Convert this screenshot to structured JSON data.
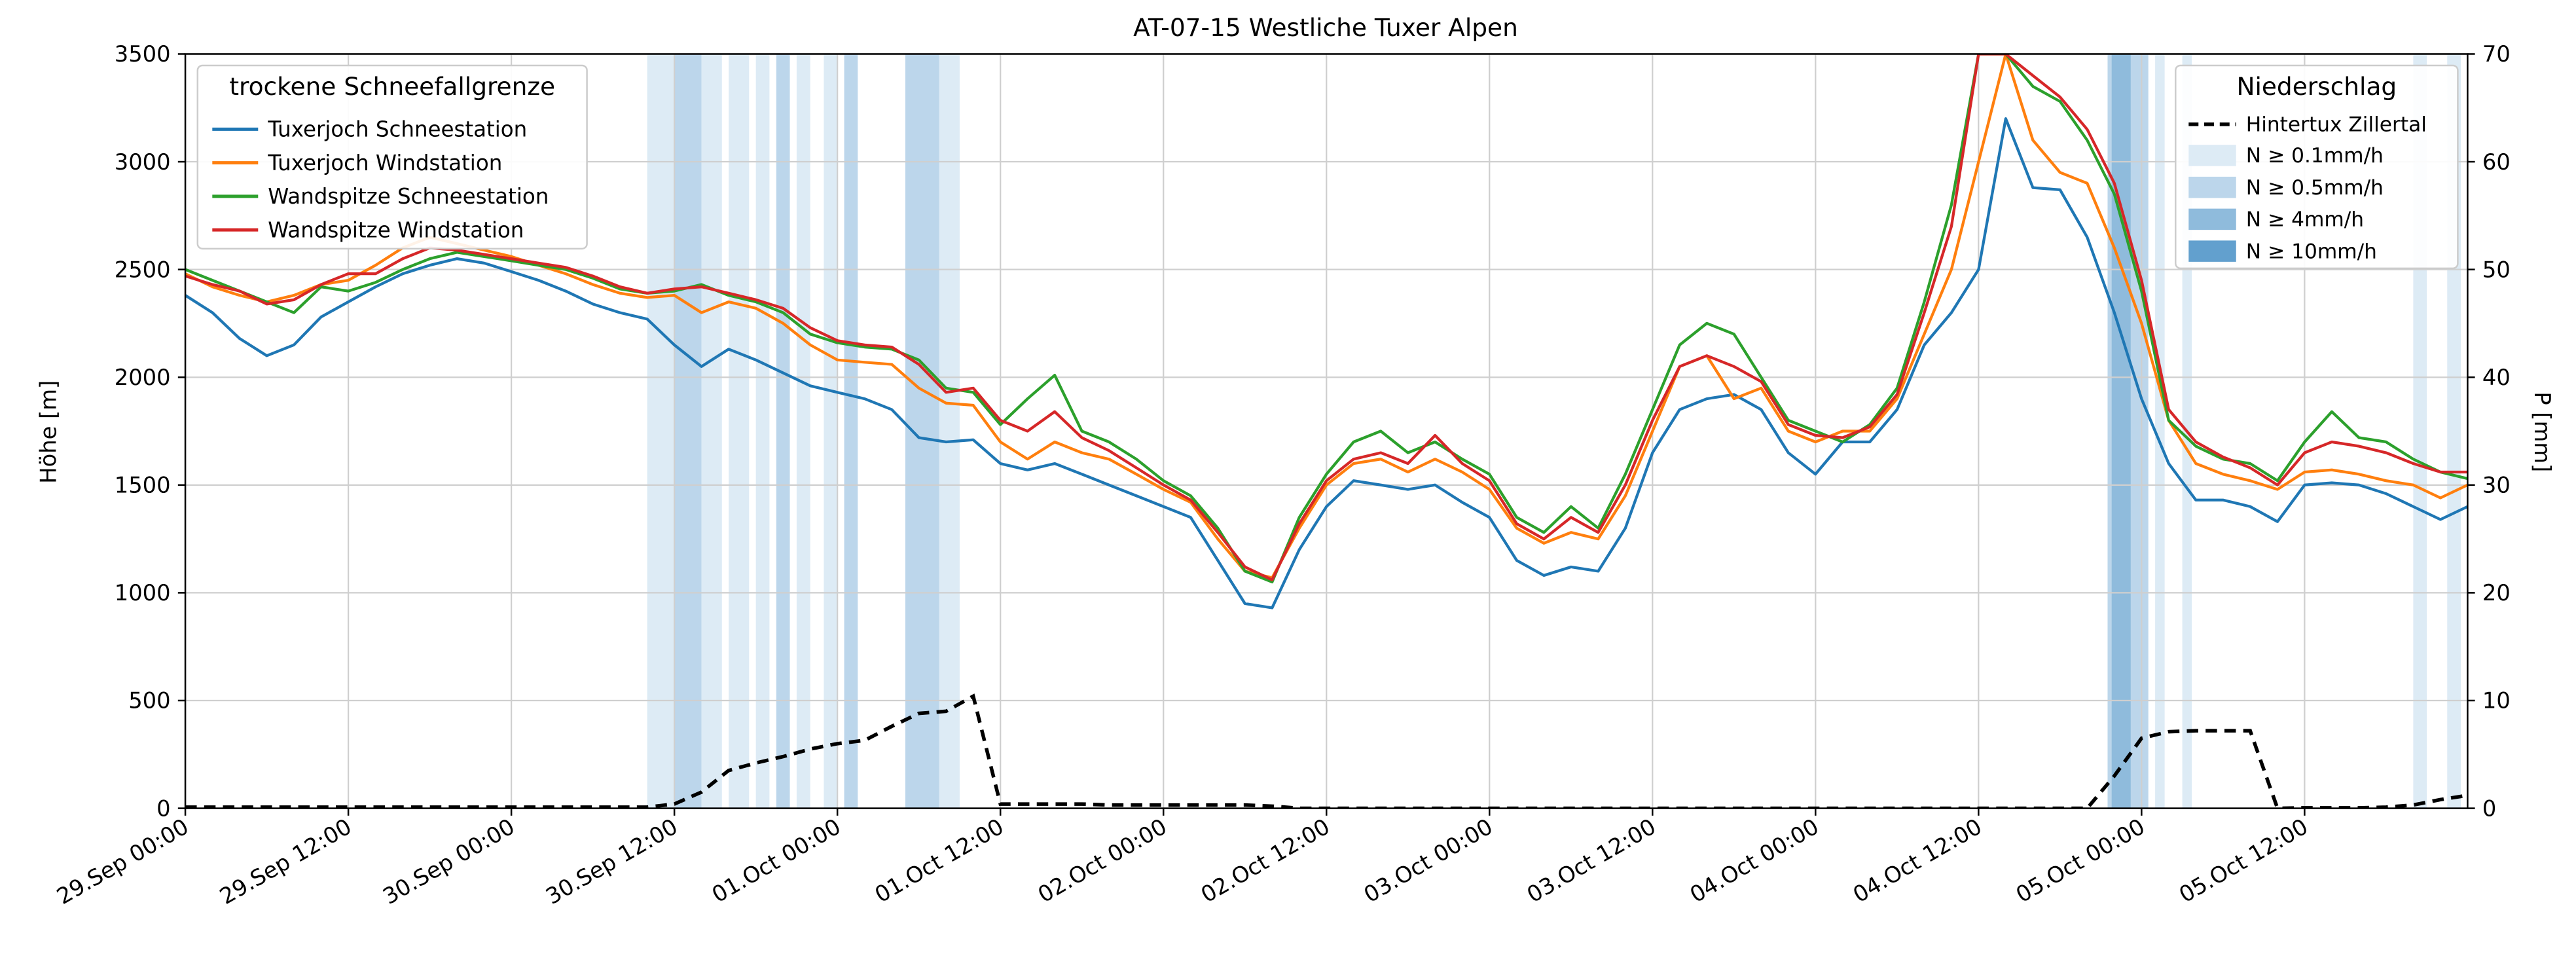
{
  "title": "AT-07-15 Westliche Tuxer Alpen",
  "chart_data": {
    "type": "line",
    "title": "AT-07-15 Westliche Tuxer Alpen",
    "grid": true,
    "xlim": [
      0,
      168
    ],
    "x_ticks": [
      {
        "h": 0,
        "label": "29.Sep 00:00"
      },
      {
        "h": 12,
        "label": "29.Sep 12:00"
      },
      {
        "h": 24,
        "label": "30.Sep 00:00"
      },
      {
        "h": 36,
        "label": "30.Sep 12:00"
      },
      {
        "h": 48,
        "label": "01.Oct 00:00"
      },
      {
        "h": 60,
        "label": "01.Oct 12:00"
      },
      {
        "h": 72,
        "label": "02.Oct 00:00"
      },
      {
        "h": 84,
        "label": "02.Oct 12:00"
      },
      {
        "h": 96,
        "label": "03.Oct 00:00"
      },
      {
        "h": 108,
        "label": "03.Oct 12:00"
      },
      {
        "h": 120,
        "label": "04.Oct 00:00"
      },
      {
        "h": 132,
        "label": "04.Oct 12:00"
      },
      {
        "h": 144,
        "label": "05.Oct 00:00"
      },
      {
        "h": 156,
        "label": "05.Oct 12:00"
      }
    ],
    "ylabel_left": "Höhe [m]",
    "ylim_left": [
      0,
      3500
    ],
    "yticks_left": [
      0,
      500,
      1000,
      1500,
      2000,
      2500,
      3000,
      3500
    ],
    "ylabel_right": "P [mm]",
    "ylim_right": [
      0,
      70
    ],
    "yticks_right": [
      0,
      10,
      20,
      30,
      40,
      50,
      60,
      70
    ],
    "legend_left": {
      "title": "trockene Schneefallgrenze"
    },
    "legend_right": {
      "title": "Niederschlag",
      "line_label": "Hintertux Zillertal",
      "band_entries": [
        {
          "label": "N ≥ 0.1mm/h",
          "level": "0.1"
        },
        {
          "label": "N ≥ 0.5mm/h",
          "level": "0.5"
        },
        {
          "label": "N ≥ 4mm/h",
          "level": "4"
        },
        {
          "label": "N ≥ 10mm/h",
          "level": "10"
        }
      ]
    },
    "band_colors": {
      "0.1": "#ddebf5",
      "0.5": "#bcd6eb",
      "4": "#8fbbdc",
      "10": "#62a0ce"
    },
    "x_hours": [
      0,
      2,
      4,
      6,
      8,
      10,
      12,
      14,
      16,
      18,
      20,
      22,
      24,
      26,
      28,
      30,
      32,
      34,
      36,
      38,
      40,
      42,
      44,
      46,
      48,
      50,
      52,
      54,
      56,
      58,
      60,
      62,
      64,
      66,
      68,
      70,
      72,
      74,
      76,
      78,
      80,
      82,
      84,
      86,
      88,
      90,
      92,
      94,
      96,
      98,
      100,
      102,
      104,
      106,
      108,
      110,
      112,
      114,
      116,
      118,
      120,
      122,
      124,
      126,
      128,
      130,
      132,
      134,
      136,
      138,
      140,
      142,
      144,
      146,
      148,
      150,
      152,
      154,
      156,
      158,
      160,
      162,
      164,
      166,
      168
    ],
    "series": [
      {
        "name": "Tuxerjoch Schneestation",
        "color": "#1f77b4",
        "axis": "left",
        "values": [
          2380,
          2300,
          2180,
          2100,
          2150,
          2280,
          2350,
          2420,
          2480,
          2520,
          2550,
          2530,
          2490,
          2450,
          2400,
          2340,
          2300,
          2270,
          2150,
          2050,
          2130,
          2080,
          2020,
          1960,
          1930,
          1900,
          1850,
          1720,
          1700,
          1710,
          1600,
          1570,
          1600,
          1550,
          1500,
          1450,
          1400,
          1350,
          1150,
          950,
          930,
          1200,
          1400,
          1520,
          1500,
          1480,
          1500,
          1420,
          1350,
          1150,
          1080,
          1120,
          1100,
          1300,
          1650,
          1850,
          1900,
          1920,
          1850,
          1650,
          1550,
          1700,
          1700,
          1850,
          2150,
          2300,
          2500,
          3200,
          2880,
          2870,
          2650,
          2300,
          1900,
          1600,
          1430,
          1430,
          1400,
          1330,
          1500,
          1510,
          1500,
          1460,
          1400,
          1340,
          1400
        ]
      },
      {
        "name": "Tuxerjoch Windstation",
        "color": "#ff7f0e",
        "axis": "left",
        "values": [
          2480,
          2420,
          2380,
          2350,
          2380,
          2430,
          2450,
          2520,
          2600,
          2650,
          2620,
          2590,
          2560,
          2520,
          2480,
          2430,
          2390,
          2370,
          2380,
          2300,
          2350,
          2320,
          2250,
          2150,
          2080,
          2070,
          2060,
          1950,
          1880,
          1870,
          1700,
          1620,
          1700,
          1650,
          1620,
          1550,
          1480,
          1420,
          1250,
          1100,
          1070,
          1300,
          1500,
          1600,
          1620,
          1560,
          1620,
          1560,
          1480,
          1300,
          1230,
          1280,
          1250,
          1450,
          1750,
          2050,
          2100,
          1900,
          1950,
          1750,
          1700,
          1750,
          1750,
          1900,
          2200,
          2500,
          3000,
          3500,
          3100,
          2950,
          2900,
          2600,
          2250,
          1800,
          1600,
          1550,
          1520,
          1480,
          1560,
          1570,
          1550,
          1520,
          1500,
          1440,
          1500
        ]
      },
      {
        "name": "Wandspitze Schneestation",
        "color": "#2ca02c",
        "axis": "left",
        "values": [
          2500,
          2450,
          2400,
          2350,
          2300,
          2420,
          2400,
          2440,
          2500,
          2550,
          2580,
          2560,
          2540,
          2520,
          2500,
          2460,
          2410,
          2390,
          2400,
          2430,
          2380,
          2350,
          2300,
          2200,
          2160,
          2140,
          2130,
          2080,
          1950,
          1930,
          1780,
          1900,
          2010,
          1750,
          1700,
          1620,
          1520,
          1450,
          1300,
          1100,
          1050,
          1350,
          1550,
          1700,
          1750,
          1650,
          1700,
          1620,
          1550,
          1350,
          1280,
          1400,
          1300,
          1550,
          1850,
          2150,
          2250,
          2200,
          2000,
          1800,
          1750,
          1700,
          1780,
          1950,
          2350,
          2800,
          3500,
          3500,
          3350,
          3280,
          3100,
          2850,
          2400,
          1800,
          1680,
          1620,
          1600,
          1520,
          1700,
          1840,
          1720,
          1700,
          1620,
          1560,
          1530
        ]
      },
      {
        "name": "Wandspitze Windstation",
        "color": "#d62728",
        "axis": "left",
        "values": [
          2470,
          2430,
          2400,
          2340,
          2360,
          2430,
          2480,
          2480,
          2550,
          2600,
          2590,
          2570,
          2550,
          2530,
          2510,
          2470,
          2420,
          2390,
          2410,
          2420,
          2390,
          2360,
          2320,
          2230,
          2170,
          2150,
          2140,
          2060,
          1930,
          1950,
          1800,
          1750,
          1840,
          1720,
          1660,
          1580,
          1500,
          1430,
          1280,
          1120,
          1060,
          1320,
          1520,
          1620,
          1650,
          1600,
          1730,
          1600,
          1520,
          1320,
          1250,
          1350,
          1280,
          1500,
          1800,
          2050,
          2100,
          2050,
          1980,
          1780,
          1730,
          1720,
          1770,
          1920,
          2300,
          2700,
          3500,
          3500,
          3400,
          3300,
          3150,
          2900,
          2450,
          1850,
          1700,
          1630,
          1580,
          1500,
          1650,
          1700,
          1680,
          1650,
          1600,
          1560,
          1560
        ]
      }
    ],
    "precip_line": {
      "name": "Hintertux Zillertal",
      "color": "#000000",
      "dashed": true,
      "axis": "right",
      "values": [
        0.1,
        0.1,
        0.1,
        0.1,
        0.1,
        0.1,
        0.1,
        0.1,
        0.1,
        0.1,
        0.1,
        0.1,
        0.1,
        0.1,
        0.1,
        0.1,
        0.1,
        0.1,
        0.4,
        1.5,
        3.5,
        4.2,
        4.8,
        5.5,
        6.0,
        6.3,
        7.6,
        8.8,
        9.0,
        10.4,
        0.4,
        0.4,
        0.4,
        0.4,
        0.3,
        0.3,
        0.3,
        0.3,
        0.3,
        0.3,
        0.2,
        0,
        0,
        0,
        0,
        0,
        0,
        0,
        0,
        0,
        0,
        0,
        0,
        0,
        0,
        0,
        0,
        0,
        0,
        0,
        0,
        0,
        0,
        0,
        0,
        0,
        0,
        0,
        0,
        0,
        0,
        3.0,
        6.5,
        7.1,
        7.2,
        7.2,
        7.2,
        0,
        0.05,
        0.05,
        0.05,
        0.1,
        0.3,
        0.8,
        1.2
      ]
    },
    "precip_bands": [
      {
        "start": 34,
        "end": 36,
        "level": "0.1"
      },
      {
        "start": 36,
        "end": 38,
        "level": "0.5"
      },
      {
        "start": 38,
        "end": 39.5,
        "level": "0.1"
      },
      {
        "start": 40,
        "end": 41.5,
        "level": "0.1"
      },
      {
        "start": 42,
        "end": 43,
        "level": "0.1"
      },
      {
        "start": 43.5,
        "end": 44.5,
        "level": "0.5"
      },
      {
        "start": 45,
        "end": 46,
        "level": "0.1"
      },
      {
        "start": 47,
        "end": 48,
        "level": "0.1"
      },
      {
        "start": 48.5,
        "end": 49.5,
        "level": "0.5"
      },
      {
        "start": 53,
        "end": 55.5,
        "level": "0.5"
      },
      {
        "start": 55.5,
        "end": 57,
        "level": "0.1"
      },
      {
        "start": 141.5,
        "end": 144.5,
        "level": "0.5"
      },
      {
        "start": 141.8,
        "end": 143.2,
        "level": "4"
      },
      {
        "start": 145,
        "end": 145.7,
        "level": "0.1"
      },
      {
        "start": 147,
        "end": 147.7,
        "level": "0.1"
      },
      {
        "start": 164,
        "end": 165,
        "level": "0.1"
      },
      {
        "start": 166.5,
        "end": 167.5,
        "level": "0.1"
      }
    ]
  }
}
